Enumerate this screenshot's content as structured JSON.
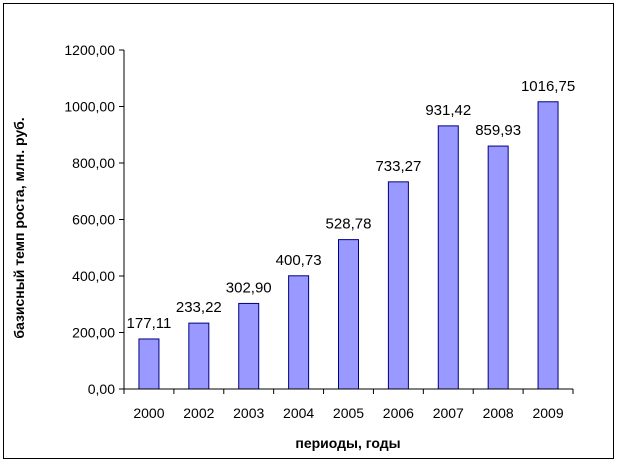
{
  "chart_data": {
    "type": "bar",
    "categories": [
      "2000",
      "2002",
      "2003",
      "2004",
      "2005",
      "2006",
      "2007",
      "2008",
      "2009"
    ],
    "values": [
      177.11,
      233.22,
      302.9,
      400.73,
      528.78,
      733.27,
      931.42,
      859.93,
      1016.75
    ],
    "data_labels": [
      "177,11",
      "233,22",
      "302,90",
      "400,73",
      "528,78",
      "733,27",
      "931,42",
      "859,93",
      "1016,75"
    ],
    "ylim": [
      0,
      1200
    ],
    "yticks": [
      0,
      200,
      400,
      600,
      800,
      1000,
      1200
    ],
    "ytick_labels": [
      "0,00",
      "200,00",
      "400,00",
      "600,00",
      "800,00",
      "1000,00",
      "1200,00"
    ],
    "xlabel": "периоды, годы",
    "ylabel": "базисный темп роста, млн. руб.",
    "grid": false,
    "legend": "none",
    "colors": {
      "bar_fill": "#9999FF",
      "bar_stroke": "#000080",
      "axis": "#000000"
    }
  }
}
